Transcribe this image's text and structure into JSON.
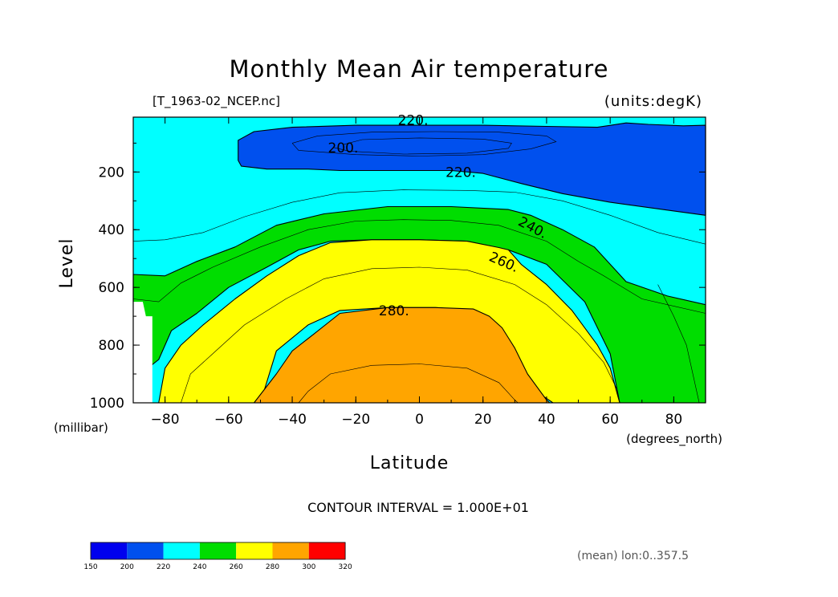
{
  "chart_data": {
    "type": "contour",
    "title": "Monthly Mean Air temperature",
    "source_file": "[T_1963-02_NCEP.nc]",
    "units_label": "(units:degK)",
    "xlabel": "Latitude",
    "xunits": "(degrees_north)",
    "ylabel": "Level",
    "yunits": "(millibar)",
    "xlim": [
      -90,
      90
    ],
    "ylim": [
      10,
      1000
    ],
    "y_inverted": true,
    "x_ticks": [
      "-80",
      "-60",
      "-40",
      "-20",
      "0",
      "20",
      "40",
      "60",
      "80"
    ],
    "x_tick_values": [
      -80,
      -60,
      -40,
      -20,
      0,
      20,
      40,
      60,
      80
    ],
    "y_ticks": [
      "200",
      "400",
      "600",
      "800",
      "1000"
    ],
    "y_tick_values": [
      200,
      400,
      600,
      800,
      1000
    ],
    "contour_interval_text": "CONTOUR INTERVAL = 1.000E+01",
    "contour_labels": [
      {
        "text": "220.",
        "lat": -2,
        "level": 20
      },
      {
        "text": "200.",
        "lat": -24,
        "level": 115
      },
      {
        "text": "220.",
        "lat": 13,
        "level": 200
      },
      {
        "text": "240.",
        "lat": 35,
        "level": 390
      },
      {
        "text": "260.",
        "lat": 26,
        "level": 510
      },
      {
        "text": "280.",
        "lat": -8,
        "level": 680
      }
    ],
    "colorbar": {
      "levels": [
        "150",
        "200",
        "220",
        "240",
        "260",
        "280",
        "300",
        "320"
      ],
      "colors": [
        "#0000ee",
        "#0050ee",
        "#00ffff",
        "#00dd00",
        "#ffff00",
        "#ffa500",
        "#ff0000"
      ]
    },
    "mean_note": "(mean) lon:0..357.5",
    "bands": [
      {
        "range": "<200",
        "color": "#0000ee",
        "poly": [
          [
            -27,
            115
          ],
          [
            -22,
            97
          ],
          [
            -10,
            92
          ],
          [
            5,
            92
          ],
          [
            20,
            95
          ],
          [
            26,
            110
          ],
          [
            20,
            125
          ],
          [
            5,
            130
          ],
          [
            -10,
            130
          ],
          [
            -27,
            120
          ]
        ]
      },
      {
        "range": "200-220",
        "color": "#0050ee",
        "poly": [
          [
            -57,
            90
          ],
          [
            -52,
            60
          ],
          [
            -40,
            45
          ],
          [
            -20,
            38
          ],
          [
            0,
            38
          ],
          [
            20,
            38
          ],
          [
            40,
            42
          ],
          [
            56,
            45
          ],
          [
            65,
            30
          ],
          [
            72,
            35
          ],
          [
            83,
            40
          ],
          [
            90,
            38
          ],
          [
            90,
            350
          ],
          [
            80,
            335
          ],
          [
            60,
            305
          ],
          [
            45,
            275
          ],
          [
            32,
            240
          ],
          [
            20,
            205
          ],
          [
            10,
            195
          ],
          [
            -10,
            195
          ],
          [
            -25,
            195
          ],
          [
            -35,
            190
          ],
          [
            -48,
            190
          ],
          [
            -56,
            180
          ],
          [
            -57,
            160
          ]
        ]
      },
      {
        "range": "240-260",
        "color": "#00dd00",
        "poly": [
          [
            -90,
            555
          ],
          [
            -80,
            560
          ],
          [
            -70,
            510
          ],
          [
            -58,
            460
          ],
          [
            -45,
            385
          ],
          [
            -30,
            345
          ],
          [
            -10,
            320
          ],
          [
            10,
            320
          ],
          [
            28,
            330
          ],
          [
            35,
            350
          ],
          [
            45,
            400
          ],
          [
            55,
            460
          ],
          [
            65,
            580
          ],
          [
            78,
            630
          ],
          [
            90,
            660
          ],
          [
            90,
            1000
          ],
          [
            63,
            1000
          ],
          [
            60,
            830
          ],
          [
            52,
            650
          ],
          [
            40,
            520
          ],
          [
            28,
            470
          ],
          [
            15,
            440
          ],
          [
            0,
            435
          ],
          [
            -15,
            435
          ],
          [
            -28,
            440
          ],
          [
            -38,
            470
          ],
          [
            -48,
            530
          ],
          [
            -60,
            600
          ],
          [
            -70,
            690
          ],
          [
            -78,
            750
          ],
          [
            -82,
            850
          ],
          [
            -90,
            920
          ]
        ]
      },
      {
        "range": "260-280",
        "color": "#ffff00",
        "poly": [
          [
            -82,
            1000
          ],
          [
            -80,
            880
          ],
          [
            -75,
            800
          ],
          [
            -68,
            730
          ],
          [
            -58,
            640
          ],
          [
            -48,
            560
          ],
          [
            -38,
            490
          ],
          [
            -28,
            445
          ],
          [
            -15,
            435
          ],
          [
            0,
            435
          ],
          [
            15,
            440
          ],
          [
            25,
            462
          ],
          [
            28,
            470
          ],
          [
            32,
            520
          ],
          [
            40,
            590
          ],
          [
            48,
            680
          ],
          [
            56,
            800
          ],
          [
            60,
            880
          ],
          [
            63,
            1000
          ],
          [
            42,
            1000
          ],
          [
            38,
            970
          ],
          [
            30,
            860
          ],
          [
            24,
            740
          ],
          [
            18,
            680
          ],
          [
            5,
            670
          ],
          [
            -10,
            670
          ],
          [
            -25,
            680
          ],
          [
            -35,
            730
          ],
          [
            -45,
            820
          ],
          [
            -50,
            1000
          ]
        ]
      },
      {
        "range": "280-300",
        "color": "#ffa500",
        "poly": [
          [
            -52,
            1000
          ],
          [
            -45,
            900
          ],
          [
            -40,
            820
          ],
          [
            -33,
            760
          ],
          [
            -25,
            690
          ],
          [
            -10,
            670
          ],
          [
            5,
            670
          ],
          [
            17,
            675
          ],
          [
            22,
            700
          ],
          [
            26,
            740
          ],
          [
            30,
            810
          ],
          [
            34,
            900
          ],
          [
            40,
            990
          ],
          [
            41,
            1000
          ]
        ]
      },
      {
        "range": "white-gap",
        "color": "#ffffff",
        "poly": [
          [
            -90,
            650
          ],
          [
            -87,
            650
          ],
          [
            -86,
            700
          ],
          [
            -84,
            700
          ],
          [
            -84,
            1000
          ],
          [
            -90,
            1000
          ]
        ]
      }
    ],
    "isolines": [
      [
        [
          -24,
          105
        ],
        [
          -18,
          88
        ],
        [
          0,
          82
        ],
        [
          20,
          86
        ],
        [
          29,
          100
        ],
        [
          28,
          118
        ],
        [
          15,
          135
        ],
        [
          -5,
          138
        ],
        [
          -22,
          128
        ],
        [
          -27,
          115
        ]
      ],
      [
        [
          -40,
          100
        ],
        [
          -32,
          75
        ],
        [
          -15,
          62
        ],
        [
          5,
          60
        ],
        [
          25,
          62
        ],
        [
          40,
          75
        ],
        [
          43,
          95
        ],
        [
          35,
          120
        ],
        [
          20,
          140
        ],
        [
          0,
          145
        ],
        [
          -20,
          140
        ],
        [
          -38,
          125
        ],
        [
          -40,
          100
        ]
      ],
      [
        [
          -90,
          440
        ],
        [
          -80,
          435
        ],
        [
          -68,
          410
        ],
        [
          -55,
          355
        ],
        [
          -40,
          305
        ],
        [
          -25,
          272
        ],
        [
          -5,
          262
        ],
        [
          15,
          264
        ],
        [
          30,
          270
        ],
        [
          45,
          300
        ],
        [
          60,
          350
        ],
        [
          75,
          410
        ],
        [
          90,
          450
        ]
      ],
      [
        [
          -90,
          640
        ],
        [
          -82,
          650
        ],
        [
          -75,
          585
        ],
        [
          -65,
          530
        ],
        [
          -50,
          460
        ],
        [
          -35,
          400
        ],
        [
          -20,
          370
        ],
        [
          -5,
          365
        ],
        [
          10,
          368
        ],
        [
          25,
          385
        ],
        [
          40,
          440
        ],
        [
          50,
          510
        ],
        [
          58,
          560
        ],
        [
          70,
          640
        ],
        [
          90,
          690
        ]
      ],
      [
        [
          -75,
          1000
        ],
        [
          -72,
          900
        ],
        [
          -65,
          830
        ],
        [
          -55,
          730
        ],
        [
          -42,
          640
        ],
        [
          -30,
          570
        ],
        [
          -15,
          535
        ],
        [
          0,
          530
        ],
        [
          15,
          540
        ],
        [
          30,
          590
        ],
        [
          40,
          660
        ],
        [
          50,
          760
        ],
        [
          58,
          860
        ],
        [
          62,
          950
        ]
      ],
      [
        [
          -38,
          1000
        ],
        [
          -35,
          960
        ],
        [
          -28,
          900
        ],
        [
          -15,
          870
        ],
        [
          0,
          865
        ],
        [
          15,
          880
        ],
        [
          25,
          930
        ],
        [
          30,
          990
        ],
        [
          31,
          1000
        ]
      ],
      [
        [
          75,
          590
        ],
        [
          80,
          700
        ],
        [
          84,
          800
        ],
        [
          88,
          1000
        ]
      ]
    ]
  }
}
